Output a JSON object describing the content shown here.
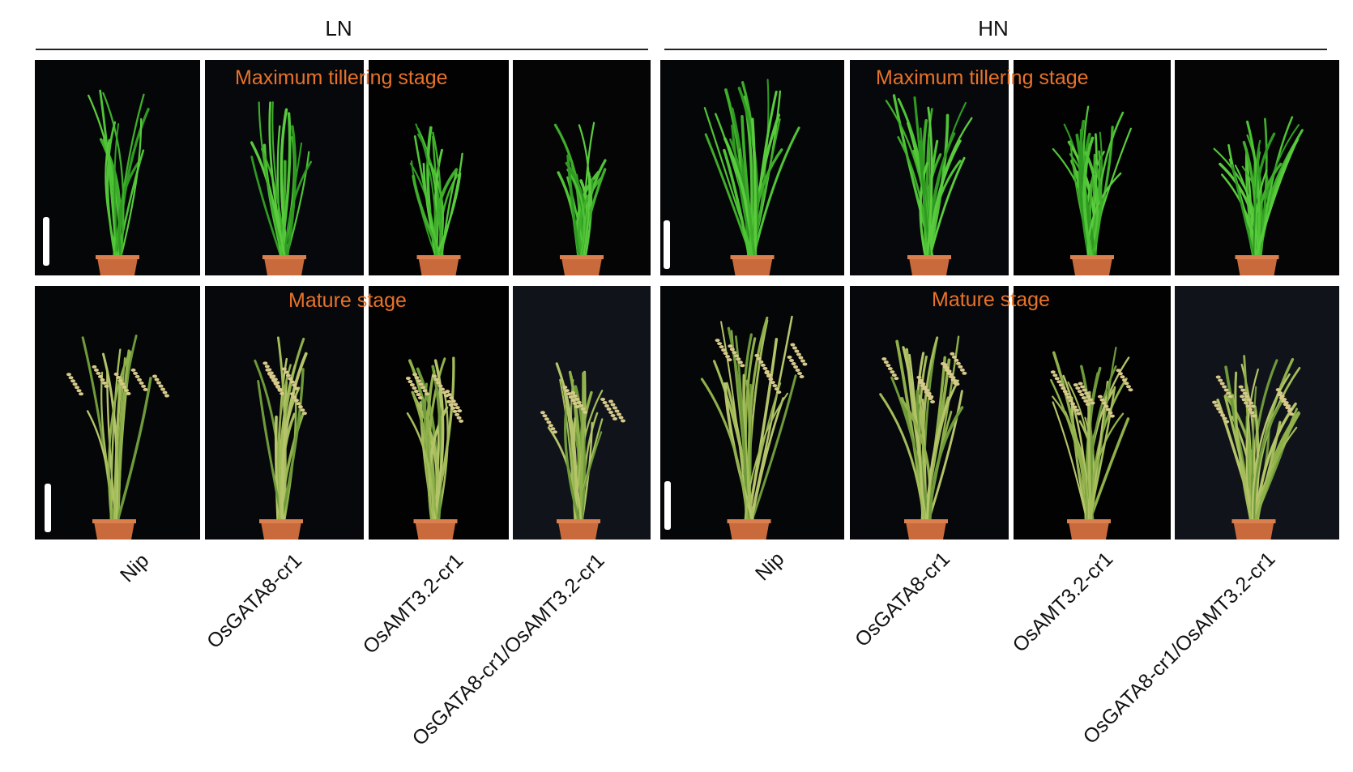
{
  "groups": [
    {
      "label": "LN"
    },
    {
      "label": "HN"
    }
  ],
  "stages": {
    "top": "Maximum tillering stage",
    "bottom": "Mature stage"
  },
  "genotypes": [
    "Nip",
    "OsGATA8-cr1",
    "OsAMT3.2-cr1",
    "OsGATA8-cr1/OsAMT3.2-cr1"
  ],
  "colors": {
    "stage_label": "#e8732a",
    "background": "#000000",
    "pot": "#c96a3c"
  }
}
